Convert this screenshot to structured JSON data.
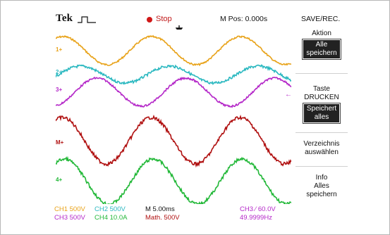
{
  "header": {
    "brand": "Tek",
    "run_state": "Stop",
    "mpos": "M Pos: 0.000s",
    "menu_title": "SAVE/REC."
  },
  "markers": {
    "ch1": "1+",
    "ch2": "2+",
    "ch3": "3+",
    "math": "M+",
    "ch4": "4+",
    "ch3_trigger": "←"
  },
  "side_menu": {
    "b1_label": "Aktion",
    "b1_value_line1": "Alle",
    "b1_value_line2": "speichern",
    "b2_label_line1": "Taste",
    "b2_label_line2": "DRUCKEN",
    "b2_value_line1": "Speichert",
    "b2_value_line2": "alles",
    "b3_line1": "Verzeichnis",
    "b3_line2": "auswählen",
    "b4_line1": "Info",
    "b4_line2": "Alles",
    "b4_line3": "speichern"
  },
  "status": {
    "ch1": "CH1  500V",
    "ch2": "CH2  500V",
    "timebase": "M 5.00ms",
    "trigger": "CH3  ∕  60.0V",
    "ch3": "CH3  500V",
    "ch4": "CH4  10.0A",
    "math": "Math. 500V",
    "freq": "49.9999Hz"
  },
  "colors": {
    "ch1": "#e8a218",
    "ch2": "#2ab8c0",
    "ch3": "#b427c8",
    "math": "#b01010",
    "ch4": "#22b838"
  }
}
